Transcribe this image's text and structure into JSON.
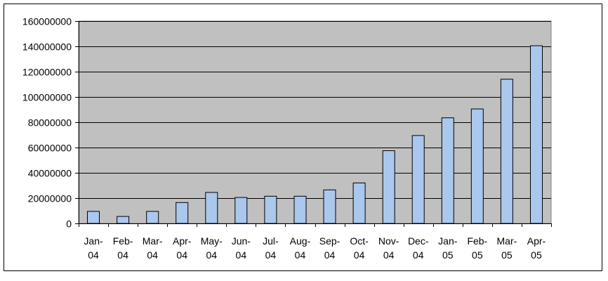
{
  "chart_data": {
    "type": "bar",
    "title": "",
    "xlabel": "",
    "ylabel": "",
    "categories": [
      "Jan-04",
      "Feb-04",
      "Mar-04",
      "Apr-04",
      "May-04",
      "Jun-04",
      "Jul-04",
      "Aug-04",
      "Sep-04",
      "Oct-04",
      "Nov-04",
      "Dec-04",
      "Jan-05",
      "Feb-05",
      "Mar-05",
      "Apr-05"
    ],
    "values": [
      9500000,
      5500000,
      9500000,
      16500000,
      24500000,
      20500000,
      21500000,
      21500000,
      26500000,
      32000000,
      57500000,
      69500000,
      83500000,
      90500000,
      114000000,
      140500000
    ],
    "ylim": [
      0,
      160000000
    ],
    "yticks": [
      0,
      20000000,
      40000000,
      60000000,
      80000000,
      100000000,
      120000000,
      140000000,
      160000000
    ],
    "ytick_labels": [
      "0",
      "20000000",
      "40000000",
      "60000000",
      "80000000",
      "100000000",
      "120000000",
      "140000000",
      "160000000"
    ],
    "grid": true,
    "legend": "none",
    "colors": {
      "plot_background": "#c0c0c0",
      "bar_fill": "#aac8ee",
      "bar_stroke": "#000000",
      "gridline": "#000000"
    }
  }
}
